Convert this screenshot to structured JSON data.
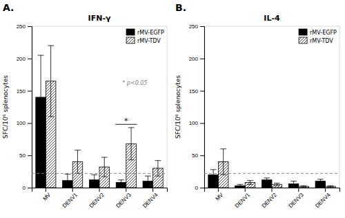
{
  "chart_data": [
    {
      "type": "bar",
      "panel_label": "A.",
      "title": "IFN-γ",
      "categories": [
        "MV",
        "DENV1",
        "DENV2",
        "DENV3",
        "DENV4"
      ],
      "series": [
        {
          "name": "rMV-EGFP",
          "color": "#000000",
          "values": [
            140,
            11,
            12,
            8,
            10
          ],
          "errors": [
            65,
            10,
            8,
            4,
            8
          ]
        },
        {
          "name": "rMV-TDV",
          "color": "#ffffff",
          "values": [
            165,
            40,
            32,
            68,
            30
          ],
          "errors": [
            55,
            18,
            15,
            25,
            12
          ]
        }
      ],
      "ylim": [
        0,
        250
      ],
      "yticks": [
        0,
        50,
        100,
        150,
        200,
        250
      ],
      "ylabel": "SFC/10⁶ splenocytes",
      "reference_line": 22,
      "legend": "upper right",
      "annotations": [
        {
          "text": "* p<0.05"
        }
      ],
      "significance": [
        {
          "category": "DENV3",
          "y": 98,
          "label": "*"
        }
      ]
    },
    {
      "type": "bar",
      "panel_label": "B.",
      "title": "IL-4",
      "categories": [
        "MV",
        "DENV1",
        "DENV2",
        "DENV3",
        "DENV4"
      ],
      "series": [
        {
          "name": "rMV-EGFP",
          "color": "#000000",
          "values": [
            20,
            3,
            12,
            6,
            10
          ],
          "errors": [
            8,
            2,
            3,
            4,
            3
          ]
        },
        {
          "name": "rMV-TDV",
          "color": "#ffffff",
          "values": [
            40,
            8,
            5,
            2,
            2
          ],
          "errors": [
            20,
            3,
            2,
            1,
            1
          ]
        }
      ],
      "ylim": [
        0,
        250
      ],
      "yticks": [
        0,
        50,
        100,
        150,
        200,
        250
      ],
      "ylabel": "SFC/10⁶ splenocytes",
      "reference_line": 22,
      "legend": "upper right"
    }
  ]
}
